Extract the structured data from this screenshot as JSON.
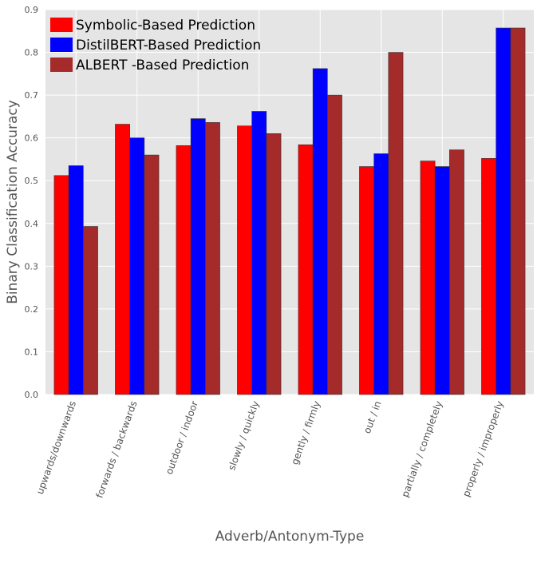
{
  "chart_data": {
    "type": "bar",
    "title": "",
    "xlabel": "Adverb/Antonym-Type",
    "ylabel": "Binary Classification Accuracy",
    "ylim": [
      0,
      0.9
    ],
    "yticks": [
      "0.0",
      "0.1",
      "0.2",
      "0.3",
      "0.4",
      "0.5",
      "0.6",
      "0.7",
      "0.8",
      "0.9"
    ],
    "grid": true,
    "legend_position": "top-left",
    "categories": [
      "upwards/downwards",
      "forwards / backwards",
      "outdoor / indoor",
      "slowly / quickly",
      "gently / firmly",
      "out / in",
      "partially / completely",
      "properly / improperly"
    ],
    "series": [
      {
        "name": "Symbolic-Based Prediction",
        "color": "#ff0000",
        "values": [
          0.512,
          0.632,
          0.582,
          0.628,
          0.584,
          0.533,
          0.546,
          0.552
        ]
      },
      {
        "name": "DistilBERT-Based Prediction",
        "color": "#0000ff",
        "values": [
          0.535,
          0.6,
          0.645,
          0.662,
          0.762,
          0.563,
          0.533,
          0.857
        ]
      },
      {
        "name": "ALBERT -Based Prediction",
        "color": "#a52a2a",
        "values": [
          0.393,
          0.56,
          0.636,
          0.61,
          0.7,
          0.8,
          0.572,
          0.857
        ]
      }
    ],
    "colors": {
      "background": "#e5e5e5",
      "grid": "#ffffff",
      "text": "#555555",
      "edge": "#333333"
    }
  }
}
